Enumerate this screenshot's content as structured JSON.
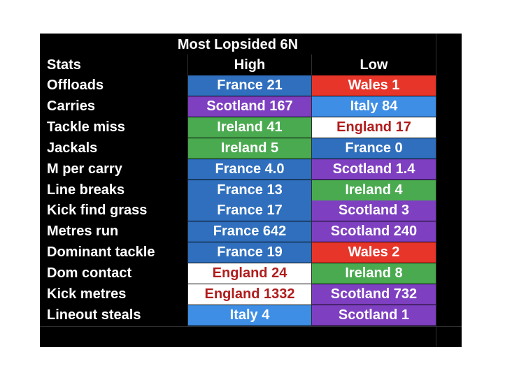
{
  "table": {
    "title": "Most Lopsided 6N",
    "headers": {
      "stats": "Stats",
      "high": "High",
      "low": "Low"
    },
    "rows": [
      {
        "stat": "Offloads",
        "high": {
          "text": "France 21",
          "bg": "#2f6fbd",
          "fg": "#ffffff"
        },
        "low": {
          "text": "Wales 1",
          "bg": "#e8352a",
          "fg": "#ffffff"
        }
      },
      {
        "stat": "Carries",
        "high": {
          "text": "Scotland 167",
          "bg": "#7e3fc0",
          "fg": "#ffffff"
        },
        "low": {
          "text": "Italy 84",
          "bg": "#3e8ee6",
          "fg": "#ffffff"
        }
      },
      {
        "stat": "Tackle miss",
        "high": {
          "text": "Ireland 41",
          "bg": "#4aaa50",
          "fg": "#ffffff"
        },
        "low": {
          "text": "England 17",
          "bg": "#ffffff",
          "fg": "#b01c1c"
        }
      },
      {
        "stat": "Jackals",
        "high": {
          "text": "Ireland 5",
          "bg": "#4aaa50",
          "fg": "#ffffff"
        },
        "low": {
          "text": "France 0",
          "bg": "#2f6fbd",
          "fg": "#ffffff"
        }
      },
      {
        "stat": "M per carry",
        "high": {
          "text": "France 4.0",
          "bg": "#2f6fbd",
          "fg": "#ffffff"
        },
        "low": {
          "text": "Scotland 1.4",
          "bg": "#7e3fc0",
          "fg": "#ffffff"
        }
      },
      {
        "stat": "Line breaks",
        "high": {
          "text": "France 13",
          "bg": "#2f6fbd",
          "fg": "#ffffff"
        },
        "low": {
          "text": "Ireland 4",
          "bg": "#4aaa50",
          "fg": "#ffffff"
        }
      },
      {
        "stat": "Kick find grass",
        "high": {
          "text": "France 17",
          "bg": "#2f6fbd",
          "fg": "#ffffff"
        },
        "low": {
          "text": "Scotland 3",
          "bg": "#7e3fc0",
          "fg": "#ffffff"
        }
      },
      {
        "stat": "Metres run",
        "high": {
          "text": "France 642",
          "bg": "#2f6fbd",
          "fg": "#ffffff"
        },
        "low": {
          "text": "Scotland 240",
          "bg": "#7e3fc0",
          "fg": "#ffffff"
        }
      },
      {
        "stat": "Dominant tackle",
        "high": {
          "text": "France 19",
          "bg": "#2f6fbd",
          "fg": "#ffffff"
        },
        "low": {
          "text": "Wales 2",
          "bg": "#e8352a",
          "fg": "#ffffff"
        }
      },
      {
        "stat": "Dom contact",
        "high": {
          "text": "England 24",
          "bg": "#ffffff",
          "fg": "#b01c1c"
        },
        "low": {
          "text": "Ireland 8",
          "bg": "#4aaa50",
          "fg": "#ffffff"
        }
      },
      {
        "stat": "Kick metres",
        "high": {
          "text": "England 1332",
          "bg": "#ffffff",
          "fg": "#b01c1c"
        },
        "low": {
          "text": "Scotland 732",
          "bg": "#7e3fc0",
          "fg": "#ffffff"
        }
      },
      {
        "stat": "Lineout steals",
        "high": {
          "text": "Italy 4",
          "bg": "#3e8ee6",
          "fg": "#ffffff"
        },
        "low": {
          "text": "Scotland 1",
          "bg": "#7e3fc0",
          "fg": "#ffffff"
        }
      }
    ]
  }
}
